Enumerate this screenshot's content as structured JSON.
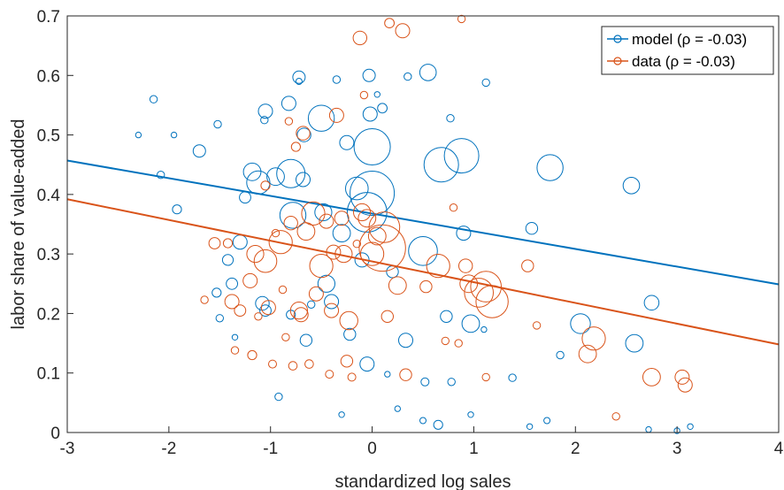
{
  "chart_data": {
    "type": "scatter",
    "title": "",
    "xlabel": "standardized log sales",
    "ylabel": "labor share of value-added",
    "xlim": [
      -3,
      4
    ],
    "ylim": [
      0,
      0.7
    ],
    "xticks": [
      -3,
      -2,
      -1,
      0,
      1,
      2,
      3,
      4
    ],
    "yticks": [
      0,
      0.1,
      0.2,
      0.3,
      0.4,
      0.5,
      0.6,
      0.7
    ],
    "xtick_labels": [
      "-3",
      "-2",
      "-1",
      "0",
      "1",
      "2",
      "3",
      "4"
    ],
    "ytick_labels": [
      "0",
      "0.1",
      "0.2",
      "0.3",
      "0.4",
      "0.5",
      "0.6",
      "0.7"
    ],
    "grid": false,
    "legend_position": "top-right",
    "legend": [
      {
        "label": "model (ρ = -0.03)",
        "color": "#0072BD"
      },
      {
        "label": "data (ρ = -0.03)",
        "color": "#D95319"
      }
    ],
    "series": [
      {
        "name": "model (ρ = -0.03)",
        "color": "#0072BD",
        "fit_line": [
          [
            -3,
            0.457
          ],
          [
            4,
            0.249
          ]
        ],
        "points": [
          {
            "x": -2.3,
            "y": 0.5,
            "size": 1
          },
          {
            "x": -2.15,
            "y": 0.56,
            "size": 1.3
          },
          {
            "x": -2.08,
            "y": 0.433,
            "size": 1.3
          },
          {
            "x": -1.95,
            "y": 0.5,
            "size": 1
          },
          {
            "x": -1.92,
            "y": 0.375,
            "size": 1.6
          },
          {
            "x": -1.7,
            "y": 0.473,
            "size": 2.2
          },
          {
            "x": -1.52,
            "y": 0.518,
            "size": 1.3
          },
          {
            "x": -1.5,
            "y": 0.192,
            "size": 1.3
          },
          {
            "x": -1.53,
            "y": 0.235,
            "size": 1.6
          },
          {
            "x": -1.42,
            "y": 0.29,
            "size": 1.9
          },
          {
            "x": -1.38,
            "y": 0.25,
            "size": 2
          },
          {
            "x": -1.35,
            "y": 0.16,
            "size": 1
          },
          {
            "x": -1.3,
            "y": 0.32,
            "size": 2.5
          },
          {
            "x": -1.25,
            "y": 0.395,
            "size": 2
          },
          {
            "x": -1.18,
            "y": 0.438,
            "size": 3.1
          },
          {
            "x": -1.12,
            "y": 0.42,
            "size": 4.1
          },
          {
            "x": -1.05,
            "y": 0.54,
            "size": 2.5
          },
          {
            "x": -1.06,
            "y": 0.525,
            "size": 1.3
          },
          {
            "x": -1.05,
            "y": 0.205,
            "size": 2
          },
          {
            "x": -1.08,
            "y": 0.217,
            "size": 2.4
          },
          {
            "x": -0.95,
            "y": 0.43,
            "size": 3.1
          },
          {
            "x": -0.92,
            "y": 0.06,
            "size": 1.3
          },
          {
            "x": -0.8,
            "y": 0.435,
            "size": 5
          },
          {
            "x": -0.82,
            "y": 0.553,
            "size": 2.5
          },
          {
            "x": -0.78,
            "y": 0.365,
            "size": 4.6
          },
          {
            "x": -0.8,
            "y": 0.198,
            "size": 1.6
          },
          {
            "x": -0.72,
            "y": 0.597,
            "size": 2.2
          },
          {
            "x": -0.72,
            "y": 0.59,
            "size": 1.1
          },
          {
            "x": -0.68,
            "y": 0.425,
            "size": 2.5
          },
          {
            "x": -0.67,
            "y": 0.5,
            "size": 2.4
          },
          {
            "x": -0.65,
            "y": 0.155,
            "size": 2.1
          },
          {
            "x": -0.6,
            "y": 0.215,
            "size": 1.3
          },
          {
            "x": -0.5,
            "y": 0.528,
            "size": 4.6
          },
          {
            "x": -0.48,
            "y": 0.37,
            "size": 3
          },
          {
            "x": -0.45,
            "y": 0.25,
            "size": 3
          },
          {
            "x": -0.4,
            "y": 0.22,
            "size": 2.5
          },
          {
            "x": -0.35,
            "y": 0.593,
            "size": 1.3
          },
          {
            "x": -0.3,
            "y": 0.335,
            "size": 3.1
          },
          {
            "x": -0.25,
            "y": 0.487,
            "size": 2.5
          },
          {
            "x": -0.22,
            "y": 0.165,
            "size": 2.1
          },
          {
            "x": -0.3,
            "y": 0.03,
            "size": 1
          },
          {
            "x": -0.15,
            "y": 0.41,
            "size": 4
          },
          {
            "x": -0.1,
            "y": 0.29,
            "size": 2.5
          },
          {
            "x": -0.05,
            "y": 0.115,
            "size": 2.5
          },
          {
            "x": -0.03,
            "y": 0.6,
            "size": 2.2
          },
          {
            "x": -0.02,
            "y": 0.535,
            "size": 2.5
          },
          {
            "x": 0.0,
            "y": 0.402,
            "size": 7.8
          },
          {
            "x": 0.0,
            "y": 0.48,
            "size": 6.4
          },
          {
            "x": -0.05,
            "y": 0.37,
            "size": 7
          },
          {
            "x": 0.05,
            "y": 0.568,
            "size": 1
          },
          {
            "x": 0.1,
            "y": 0.545,
            "size": 1.7
          },
          {
            "x": 0.15,
            "y": 0.098,
            "size": 1
          },
          {
            "x": 0.2,
            "y": 0.27,
            "size": 2.1
          },
          {
            "x": 0.25,
            "y": 0.04,
            "size": 1
          },
          {
            "x": 0.33,
            "y": 0.155,
            "size": 2.5
          },
          {
            "x": 0.35,
            "y": 0.598,
            "size": 1.3
          },
          {
            "x": 0.5,
            "y": 0.305,
            "size": 5.1
          },
          {
            "x": 0.55,
            "y": 0.605,
            "size": 2.9
          },
          {
            "x": 0.52,
            "y": 0.085,
            "size": 1.4
          },
          {
            "x": 0.5,
            "y": 0.02,
            "size": 1.1
          },
          {
            "x": 0.65,
            "y": 0.013,
            "size": 1.6
          },
          {
            "x": 0.68,
            "y": 0.45,
            "size": 6.1
          },
          {
            "x": 0.73,
            "y": 0.195,
            "size": 2.1
          },
          {
            "x": 0.77,
            "y": 0.528,
            "size": 1.3
          },
          {
            "x": 0.78,
            "y": 0.085,
            "size": 1.3
          },
          {
            "x": 0.88,
            "y": 0.465,
            "size": 6.1
          },
          {
            "x": 0.9,
            "y": 0.335,
            "size": 2.5
          },
          {
            "x": 0.97,
            "y": 0.183,
            "size": 3.1
          },
          {
            "x": 0.97,
            "y": 0.03,
            "size": 1
          },
          {
            "x": 1.12,
            "y": 0.588,
            "size": 1.3
          },
          {
            "x": 1.1,
            "y": 0.173,
            "size": 1
          },
          {
            "x": 1.38,
            "y": 0.092,
            "size": 1.3
          },
          {
            "x": 1.55,
            "y": 0.01,
            "size": 1
          },
          {
            "x": 1.57,
            "y": 0.343,
            "size": 2.1
          },
          {
            "x": 1.72,
            "y": 0.02,
            "size": 1.1
          },
          {
            "x": 1.75,
            "y": 0.445,
            "size": 4.6
          },
          {
            "x": 1.85,
            "y": 0.13,
            "size": 1.3
          },
          {
            "x": 2.05,
            "y": 0.183,
            "size": 3.5
          },
          {
            "x": 2.55,
            "y": 0.415,
            "size": 2.9
          },
          {
            "x": 2.58,
            "y": 0.15,
            "size": 3.1
          },
          {
            "x": 2.75,
            "y": 0.218,
            "size": 2.6
          },
          {
            "x": 2.72,
            "y": 0.005,
            "size": 1
          },
          {
            "x": 3.0,
            "y": 0.003,
            "size": 1
          },
          {
            "x": 3.13,
            "y": 0.01,
            "size": 1
          }
        ]
      },
      {
        "name": "data (ρ = -0.03)",
        "color": "#D95319",
        "fit_line": [
          [
            -3,
            0.392
          ],
          [
            4,
            0.148
          ]
        ],
        "points": [
          {
            "x": -1.65,
            "y": 0.223,
            "size": 1.3
          },
          {
            "x": -1.55,
            "y": 0.318,
            "size": 2
          },
          {
            "x": -1.42,
            "y": 0.318,
            "size": 1.6
          },
          {
            "x": -1.38,
            "y": 0.22,
            "size": 2.5
          },
          {
            "x": -1.35,
            "y": 0.138,
            "size": 1.3
          },
          {
            "x": -1.3,
            "y": 0.205,
            "size": 2
          },
          {
            "x": -1.2,
            "y": 0.255,
            "size": 2.5
          },
          {
            "x": -1.18,
            "y": 0.13,
            "size": 1.6
          },
          {
            "x": -1.15,
            "y": 0.3,
            "size": 3
          },
          {
            "x": -1.12,
            "y": 0.195,
            "size": 1.3
          },
          {
            "x": -1.05,
            "y": 0.288,
            "size": 4
          },
          {
            "x": -1.05,
            "y": 0.415,
            "size": 1.6
          },
          {
            "x": -1.02,
            "y": 0.21,
            "size": 2.5
          },
          {
            "x": -0.98,
            "y": 0.115,
            "size": 1.4
          },
          {
            "x": -0.95,
            "y": 0.335,
            "size": 1.3
          },
          {
            "x": -0.9,
            "y": 0.32,
            "size": 4.1
          },
          {
            "x": -0.88,
            "y": 0.24,
            "size": 1.3
          },
          {
            "x": -0.85,
            "y": 0.16,
            "size": 1.3
          },
          {
            "x": -0.82,
            "y": 0.523,
            "size": 1.3
          },
          {
            "x": -0.8,
            "y": 0.352,
            "size": 2.4
          },
          {
            "x": -0.78,
            "y": 0.112,
            "size": 1.5
          },
          {
            "x": -0.75,
            "y": 0.48,
            "size": 1.6
          },
          {
            "x": -0.72,
            "y": 0.205,
            "size": 3
          },
          {
            "x": -0.7,
            "y": 0.198,
            "size": 2.5
          },
          {
            "x": -0.68,
            "y": 0.503,
            "size": 2.4
          },
          {
            "x": -0.65,
            "y": 0.338,
            "size": 3.1
          },
          {
            "x": -0.62,
            "y": 0.115,
            "size": 1.5
          },
          {
            "x": -0.58,
            "y": 0.368,
            "size": 4.1
          },
          {
            "x": -0.55,
            "y": 0.233,
            "size": 2.5
          },
          {
            "x": -0.5,
            "y": 0.28,
            "size": 4.1
          },
          {
            "x": -0.45,
            "y": 0.355,
            "size": 2.5
          },
          {
            "x": -0.42,
            "y": 0.098,
            "size": 1.4
          },
          {
            "x": -0.4,
            "y": 0.205,
            "size": 2.5
          },
          {
            "x": -0.38,
            "y": 0.303,
            "size": 2.5
          },
          {
            "x": -0.35,
            "y": 0.533,
            "size": 2.5
          },
          {
            "x": -0.3,
            "y": 0.36,
            "size": 2.5
          },
          {
            "x": -0.28,
            "y": 0.3,
            "size": 3
          },
          {
            "x": -0.25,
            "y": 0.12,
            "size": 2.1
          },
          {
            "x": -0.23,
            "y": 0.188,
            "size": 3.2
          },
          {
            "x": -0.2,
            "y": 0.093,
            "size": 1.4
          },
          {
            "x": -0.15,
            "y": 0.317,
            "size": 1.3
          },
          {
            "x": -0.12,
            "y": 0.663,
            "size": 2.4
          },
          {
            "x": -0.1,
            "y": 0.37,
            "size": 3
          },
          {
            "x": -0.08,
            "y": 0.567,
            "size": 1.3
          },
          {
            "x": -0.05,
            "y": 0.36,
            "size": 3.1
          },
          {
            "x": 0.0,
            "y": 0.3,
            "size": 4.1
          },
          {
            "x": 0.05,
            "y": 0.33,
            "size": 3.1
          },
          {
            "x": 0.1,
            "y": 0.31,
            "size": 8.2
          },
          {
            "x": 0.12,
            "y": 0.345,
            "size": 5.4
          },
          {
            "x": 0.15,
            "y": 0.195,
            "size": 2.1
          },
          {
            "x": 0.17,
            "y": 0.688,
            "size": 1.7
          },
          {
            "x": 0.25,
            "y": 0.247,
            "size": 3.1
          },
          {
            "x": 0.3,
            "y": 0.675,
            "size": 2.5
          },
          {
            "x": 0.33,
            "y": 0.097,
            "size": 2.1
          },
          {
            "x": 0.53,
            "y": 0.245,
            "size": 2.1
          },
          {
            "x": 0.65,
            "y": 0.28,
            "size": 4.1
          },
          {
            "x": 0.72,
            "y": 0.154,
            "size": 1.3
          },
          {
            "x": 0.8,
            "y": 0.378,
            "size": 1.3
          },
          {
            "x": 0.85,
            "y": 0.15,
            "size": 1.3
          },
          {
            "x": 0.88,
            "y": 0.695,
            "size": 1.3
          },
          {
            "x": 0.92,
            "y": 0.28,
            "size": 2.4
          },
          {
            "x": 0.95,
            "y": 0.25,
            "size": 3.1
          },
          {
            "x": 1.05,
            "y": 0.235,
            "size": 5.1
          },
          {
            "x": 1.12,
            "y": 0.245,
            "size": 5.4
          },
          {
            "x": 1.18,
            "y": 0.22,
            "size": 5.7
          },
          {
            "x": 1.12,
            "y": 0.093,
            "size": 1.3
          },
          {
            "x": 1.53,
            "y": 0.28,
            "size": 2.1
          },
          {
            "x": 1.62,
            "y": 0.18,
            "size": 1.3
          },
          {
            "x": 2.12,
            "y": 0.132,
            "size": 3.1
          },
          {
            "x": 2.18,
            "y": 0.158,
            "size": 4.1
          },
          {
            "x": 2.4,
            "y": 0.027,
            "size": 1.3
          },
          {
            "x": 2.75,
            "y": 0.093,
            "size": 3.1
          },
          {
            "x": 3.05,
            "y": 0.093,
            "size": 2.5
          },
          {
            "x": 3.08,
            "y": 0.08,
            "size": 2.5
          }
        ]
      }
    ]
  }
}
